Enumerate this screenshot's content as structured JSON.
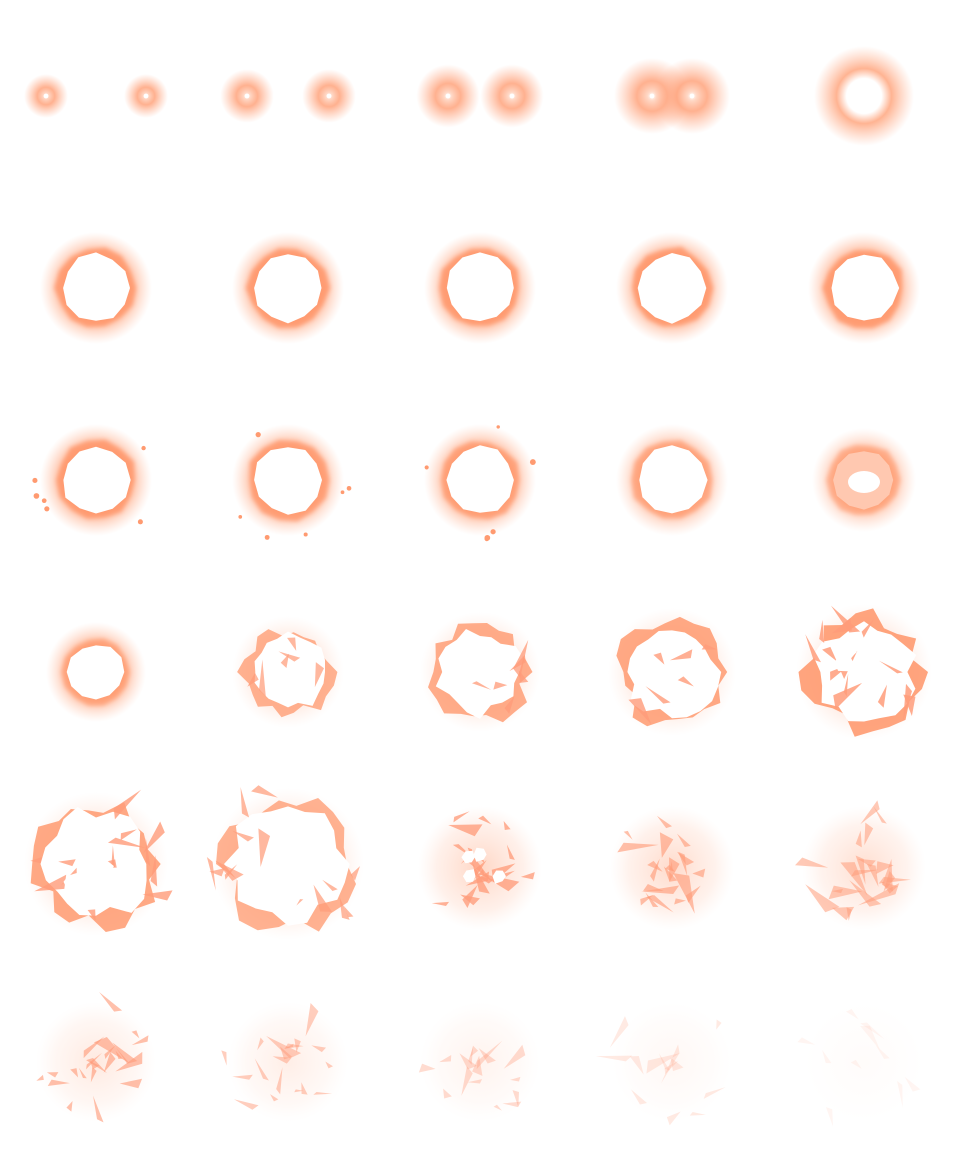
{
  "sprite_sheet": {
    "columns": 5,
    "rows": 6,
    "effect": "explosion-burst",
    "palette": {
      "glow": "#ff9a70",
      "mid": "#ffb08c",
      "core": "#ffffff",
      "shard": "#ff9c7a",
      "background": "#ffffff"
    },
    "frames": [
      {
        "stage": "twin-spark",
        "spread": 0.0
      },
      {
        "stage": "twin-spark",
        "spread": 0.15
      },
      {
        "stage": "twin-spark",
        "spread": 0.3
      },
      {
        "stage": "twin-spark",
        "spread": 0.5
      },
      {
        "stage": "merge-glow",
        "spread": 1.0
      },
      {
        "stage": "ring",
        "intensity": 1.0
      },
      {
        "stage": "ring",
        "intensity": 1.0
      },
      {
        "stage": "ring",
        "intensity": 1.0
      },
      {
        "stage": "ring",
        "intensity": 1.0
      },
      {
        "stage": "ring",
        "intensity": 1.0
      },
      {
        "stage": "ring-sparks",
        "intensity": 1.0
      },
      {
        "stage": "ring-sparks",
        "intensity": 0.95
      },
      {
        "stage": "ring-sparks",
        "intensity": 0.9
      },
      {
        "stage": "ring-fill",
        "intensity": 0.8
      },
      {
        "stage": "ring-collapse",
        "intensity": 0.7
      },
      {
        "stage": "ring",
        "intensity": 0.8
      },
      {
        "stage": "crack",
        "intensity": 0.85
      },
      {
        "stage": "crack",
        "intensity": 0.9
      },
      {
        "stage": "crack",
        "intensity": 0.95
      },
      {
        "stage": "shatter",
        "intensity": 1.0
      },
      {
        "stage": "shatter",
        "intensity": 0.95
      },
      {
        "stage": "shatter",
        "intensity": 0.85
      },
      {
        "stage": "debris",
        "intensity": 0.75
      },
      {
        "stage": "debris",
        "intensity": 0.6
      },
      {
        "stage": "debris",
        "intensity": 0.5
      },
      {
        "stage": "fade",
        "intensity": 0.45
      },
      {
        "stage": "fade",
        "intensity": 0.35
      },
      {
        "stage": "fade",
        "intensity": 0.25
      },
      {
        "stage": "fade",
        "intensity": 0.15
      },
      {
        "stage": "fade",
        "intensity": 0.07
      }
    ]
  }
}
